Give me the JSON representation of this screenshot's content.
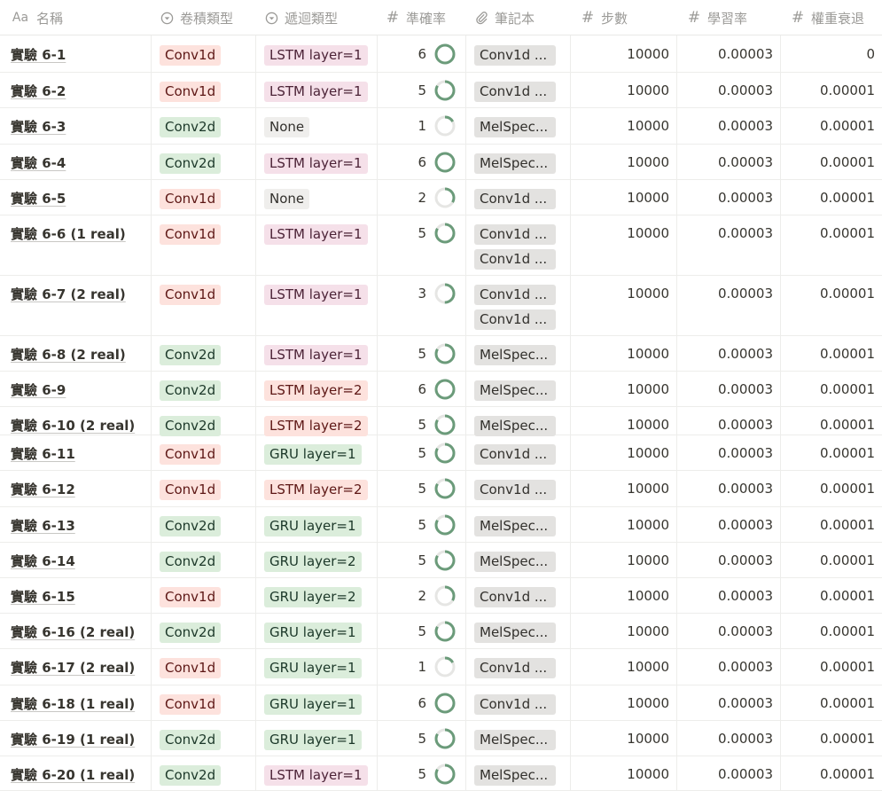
{
  "columns": [
    {
      "icon": "Aa",
      "icon_name": "text-type-icon",
      "label": "名稱"
    },
    {
      "icon": "select",
      "icon_name": "select-icon",
      "label": "卷積類型"
    },
    {
      "icon": "select",
      "icon_name": "select-icon",
      "label": "遞迴類型"
    },
    {
      "icon": "#",
      "icon_name": "number-icon",
      "label": "準確率"
    },
    {
      "icon": "clip",
      "icon_name": "paperclip-icon",
      "label": "筆記本"
    },
    {
      "icon": "#",
      "icon_name": "number-icon",
      "label": "步數"
    },
    {
      "icon": "#",
      "icon_name": "number-icon",
      "label": "學習率"
    },
    {
      "icon": "#",
      "icon_name": "number-icon",
      "label": "權重衰退"
    }
  ],
  "ring_max": 6,
  "colors": {
    "ring": "#6b9b7a",
    "ring_track": "#e6e6e4",
    "red_tag": "#fde2dd",
    "green_tag": "#dbeddb",
    "pink_tag": "#f5e0e9",
    "gray_tag": "#efeeec"
  },
  "rows": [
    {
      "name": "實驗 6-1",
      "conv": "Conv1d",
      "rnn": "LSTM layer=1",
      "acc": "6",
      "acc_value": 6,
      "notebooks": [
        "Conv1d ..."
      ],
      "steps": "10000",
      "lr": "0.00003",
      "wd": "0"
    },
    {
      "name": "實驗 6-2",
      "conv": "Conv1d",
      "rnn": "LSTM layer=1",
      "acc": "5",
      "acc_value": 5,
      "notebooks": [
        "Conv1d ..."
      ],
      "steps": "10000",
      "lr": "0.00003",
      "wd": "0.00001"
    },
    {
      "name": "實驗 6-3",
      "conv": "Conv2d",
      "rnn": "None",
      "acc": "1",
      "acc_value": 1,
      "notebooks": [
        "MelSpec..."
      ],
      "steps": "10000",
      "lr": "0.00003",
      "wd": "0.00001"
    },
    {
      "name": "實驗 6-4",
      "conv": "Conv2d",
      "rnn": "LSTM layer=1",
      "acc": "6",
      "acc_value": 6,
      "notebooks": [
        "MelSpec..."
      ],
      "steps": "10000",
      "lr": "0.00003",
      "wd": "0.00001"
    },
    {
      "name": "實驗 6-5",
      "conv": "Conv1d",
      "rnn": "None",
      "acc": "2",
      "acc_value": 2,
      "notebooks": [
        "Conv1d ..."
      ],
      "steps": "10000",
      "lr": "0.00003",
      "wd": "0.00001"
    },
    {
      "name": "實驗 6-6 (1 real)",
      "conv": "Conv1d",
      "rnn": "LSTM layer=1",
      "acc": "5",
      "acc_value": 5,
      "notebooks": [
        "Conv1d ...",
        "Conv1d ..."
      ],
      "steps": "10000",
      "lr": "0.00003",
      "wd": "0.00001"
    },
    {
      "name": "實驗 6-7 (2 real)",
      "conv": "Conv1d",
      "rnn": "LSTM layer=1",
      "acc": "3",
      "acc_value": 3,
      "notebooks": [
        "Conv1d ...",
        "Conv1d ..."
      ],
      "steps": "10000",
      "lr": "0.00003",
      "wd": "0.00001"
    },
    {
      "name": "實驗 6-8 (2 real)",
      "conv": "Conv2d",
      "rnn": "LSTM layer=1",
      "acc": "5",
      "acc_value": 5,
      "notebooks": [
        "MelSpec..."
      ],
      "steps": "10000",
      "lr": "0.00003",
      "wd": "0.00001"
    },
    {
      "name": "實驗 6-9",
      "conv": "Conv2d",
      "rnn": "LSTM layer=2",
      "acc": "6",
      "acc_value": 6,
      "notebooks": [
        "MelSpec..."
      ],
      "steps": "10000",
      "lr": "0.00003",
      "wd": "0.00001"
    },
    {
      "name": "實驗 6-10 (2 real)",
      "conv": "Conv2d",
      "rnn": "LSTM layer=2",
      "acc": "5",
      "acc_value": 5,
      "notebooks": [
        "MelSpec..."
      ],
      "steps": "10000",
      "lr": "0.00003",
      "wd": "0.00001"
    },
    {
      "name": "實驗 6-11",
      "conv": "Conv1d",
      "rnn": "GRU layer=1",
      "acc": "5",
      "acc_value": 5,
      "notebooks": [
        "Conv1d ..."
      ],
      "steps": "10000",
      "lr": "0.00003",
      "wd": "0.00001"
    },
    {
      "name": "實驗 6-12",
      "conv": "Conv1d",
      "rnn": "LSTM layer=2",
      "acc": "5",
      "acc_value": 5,
      "notebooks": [
        "Conv1d ..."
      ],
      "steps": "10000",
      "lr": "0.00003",
      "wd": "0.00001"
    },
    {
      "name": "實驗 6-13",
      "conv": "Conv2d",
      "rnn": "GRU layer=1",
      "acc": "5",
      "acc_value": 5,
      "notebooks": [
        "MelSpec..."
      ],
      "steps": "10000",
      "lr": "0.00003",
      "wd": "0.00001"
    },
    {
      "name": "實驗 6-14",
      "conv": "Conv2d",
      "rnn": "GRU layer=2",
      "acc": "5",
      "acc_value": 5,
      "notebooks": [
        "MelSpec..."
      ],
      "steps": "10000",
      "lr": "0.00003",
      "wd": "0.00001"
    },
    {
      "name": "實驗 6-15",
      "conv": "Conv1d",
      "rnn": "GRU layer=2",
      "acc": "2",
      "acc_value": 2,
      "notebooks": [
        "Conv1d ..."
      ],
      "steps": "10000",
      "lr": "0.00003",
      "wd": "0.00001"
    },
    {
      "name": "實驗 6-16 (2 real)",
      "conv": "Conv2d",
      "rnn": "GRU layer=1",
      "acc": "5",
      "acc_value": 5,
      "notebooks": [
        "MelSpec..."
      ],
      "steps": "10000",
      "lr": "0.00003",
      "wd": "0.00001"
    },
    {
      "name": "實驗 6-17 (2 real)",
      "conv": "Conv1d",
      "rnn": "GRU layer=1",
      "acc": "1",
      "acc_value": 1,
      "notebooks": [
        "Conv1d ..."
      ],
      "steps": "10000",
      "lr": "0.00003",
      "wd": "0.00001"
    },
    {
      "name": "實驗 6-18 (1 real)",
      "conv": "Conv1d",
      "rnn": "GRU layer=1",
      "acc": "6",
      "acc_value": 6,
      "notebooks": [
        "Conv1d ..."
      ],
      "steps": "10000",
      "lr": "0.00003",
      "wd": "0.00001"
    },
    {
      "name": "實驗 6-19 (1 real)",
      "conv": "Conv2d",
      "rnn": "GRU layer=1",
      "acc": "5",
      "acc_value": 5,
      "notebooks": [
        "MelSpec..."
      ],
      "steps": "10000",
      "lr": "0.00003",
      "wd": "0.00001"
    },
    {
      "name": "實驗 6-20 (1 real)",
      "conv": "Conv2d",
      "rnn": "LSTM layer=1",
      "acc": "5",
      "acc_value": 5,
      "notebooks": [
        "MelSpec..."
      ],
      "steps": "10000",
      "lr": "0.00003",
      "wd": "0.00001"
    }
  ]
}
